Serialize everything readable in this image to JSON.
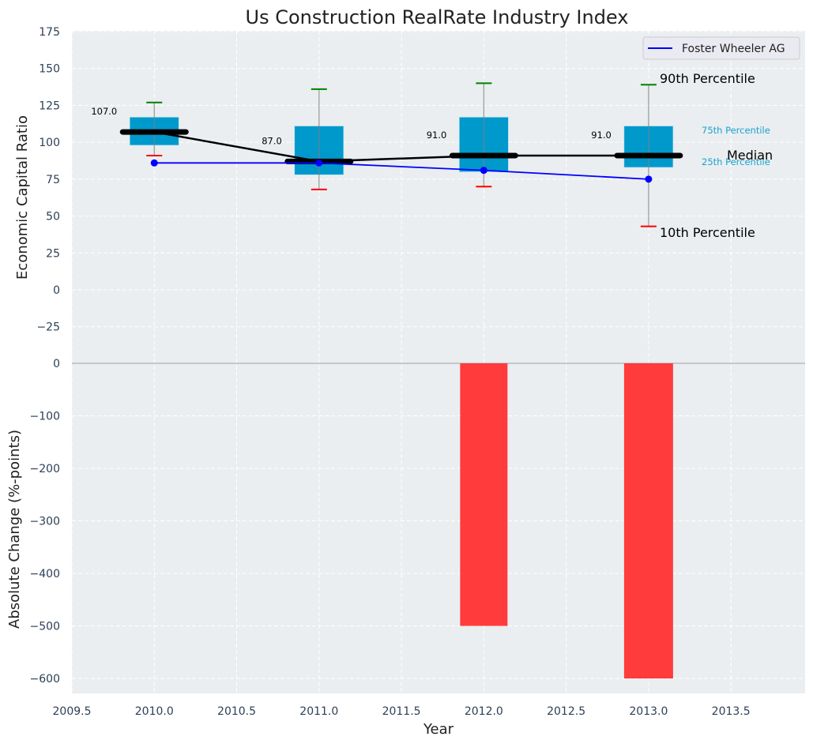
{
  "chart_data": {
    "type": "bar",
    "title": "Us Construction RealRate Industry Index",
    "xlabel": "Year",
    "xlim": [
      2009.5,
      2013.95
    ],
    "x_ticks": [
      2009.5,
      2010.0,
      2010.5,
      2011.0,
      2011.5,
      2012.0,
      2012.5,
      2013.0,
      2013.5
    ],
    "x_tick_labels": [
      "2009.5",
      "2010.0",
      "2010.5",
      "2011.0",
      "2011.5",
      "2012.0",
      "2012.5",
      "2013.0",
      "2013.5"
    ],
    "grid": true,
    "panels": [
      {
        "name": "top",
        "type": "box",
        "ylabel": "Economic Capital Ratio",
        "ylim": [
          -50,
          175
        ],
        "y_ticks": [
          -25,
          0,
          25,
          50,
          75,
          100,
          125,
          150,
          175
        ],
        "y_tick_labels": [
          "−25",
          "0",
          "25",
          "50",
          "75",
          "100",
          "125",
          "150",
          "175"
        ],
        "categories": [
          2010,
          2011,
          2012,
          2013
        ],
        "percentiles": {
          "p10": [
            91,
            68,
            70,
            43
          ],
          "p25": [
            98,
            78,
            80,
            83
          ],
          "median": [
            107,
            87,
            91,
            91
          ],
          "p75": [
            117,
            111,
            117,
            111
          ],
          "p90": [
            127,
            136,
            140,
            139
          ]
        },
        "median_labels": [
          "107.0",
          "87.0",
          "91.0",
          "91.0"
        ],
        "series": [
          {
            "name": "Foster Wheeler AG",
            "x": [
              2010,
              2011,
              2012,
              2013
            ],
            "values": [
              86,
              86,
              81,
              75
            ],
            "color": "#0000ff"
          }
        ],
        "annotations": {
          "p90": "90th Percentile",
          "p75": "75th Percentile",
          "median": "Median",
          "p25": "25th Percentile",
          "p10": "10th Percentile"
        },
        "legend": {
          "position": "top-right",
          "entries": [
            "Foster Wheeler AG"
          ]
        }
      },
      {
        "name": "bottom",
        "type": "bar",
        "ylabel": "Absolute Change (%-points)",
        "ylim": [
          -630,
          0
        ],
        "y_ticks": [
          -600,
          -500,
          -400,
          -300,
          -200,
          -100,
          0
        ],
        "y_tick_labels": [
          "−600",
          "−500",
          "−400",
          "−300",
          "−200",
          "−100",
          "0"
        ],
        "categories": [
          2010,
          2011,
          2012,
          2013
        ],
        "values": [
          0,
          0,
          -500,
          -600
        ],
        "color": "#ff3b3b"
      }
    ],
    "colors": {
      "box": "#0099cc",
      "median": "#000000",
      "p90_cap": "#008000",
      "p10_cap": "#ff0000",
      "whisker": "#808080",
      "bar": "#ff3b3b",
      "plot_bg": "#eaeef0",
      "annot_cyan": "#1ba1cf"
    }
  }
}
